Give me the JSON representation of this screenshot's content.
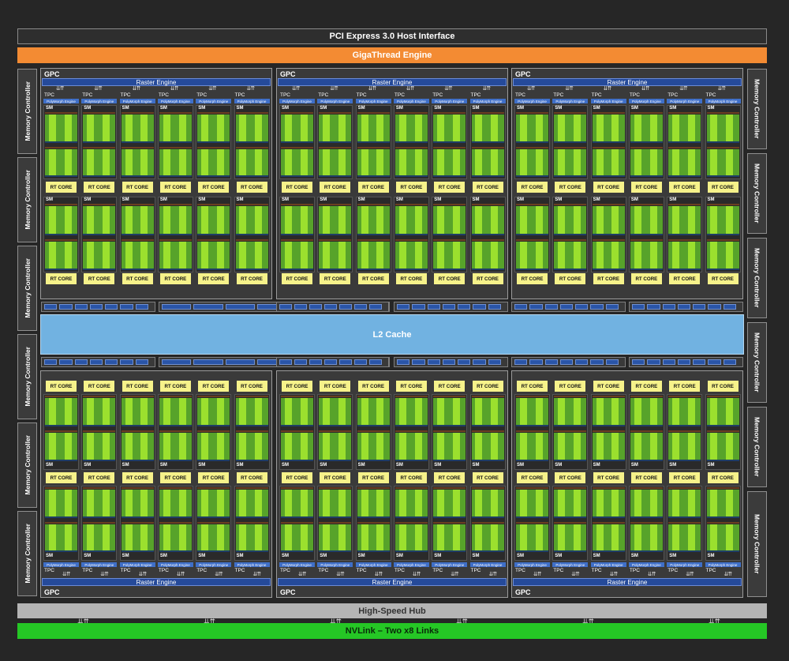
{
  "title_bar": {
    "label": "PCI Express 3.0 Host Interface"
  },
  "engine_bar": {
    "label": "GigaThread Engine"
  },
  "cache": {
    "label": "L2 Cache"
  },
  "hub_bar": {
    "label": "High-Speed Hub"
  },
  "nvlink_bar": {
    "label": "NVLink – Two x8 Links"
  },
  "memory_controller_label": "Memory Controller",
  "gpc_label": "GPC",
  "raster_label": "Raster Engine",
  "tpc_label": "TPC",
  "polymorph_label": "PolyMorph Engine",
  "sm_label": "SM",
  "rt_core_label": "RT CORE",
  "layout_counts": {
    "gpcs_per_row": 3,
    "gpc_rows": 2,
    "tpcs_per_gpc": 6,
    "sms_per_tpc": 2,
    "memory_controllers_per_side": 6
  },
  "colors": {
    "background": "#262626",
    "giga_engine": "#f38b33",
    "l2_cache": "#71b2e1",
    "hub": "#b4b4b4",
    "nvlink": "#25c725",
    "raster_engine": "#254a9a",
    "rt_core": "#f6f28a",
    "cuda_cores": "#57a32a"
  }
}
